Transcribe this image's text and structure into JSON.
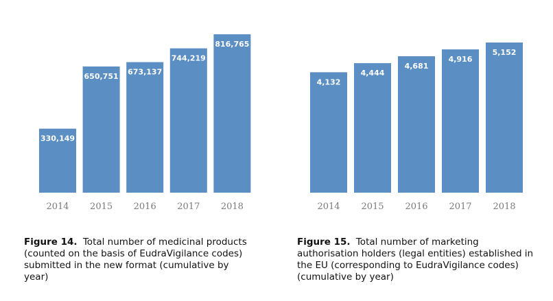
{
  "colors": {
    "bar": "#5b8ec2",
    "bar_label": "#ffffff",
    "tick": "#7a7a7a"
  },
  "figures": [
    {
      "figure_label": "Figure 14.",
      "caption": "Total number of medicinal products (counted on the basis of EudraVigilance codes) submitted in the new format (cumulative by year)"
    },
    {
      "figure_label": "Figure 15.",
      "caption": "Total number of marketing authorisation holders (legal entities) established in the EU (corresponding to EudraVigilance codes) (cumulative by year)"
    }
  ],
  "chart_data": [
    {
      "type": "bar",
      "title": "",
      "xlabel": "",
      "ylabel": "",
      "categories": [
        "2014",
        "2015",
        "2016",
        "2017",
        "2018"
      ],
      "values": [
        330149,
        650751,
        673137,
        744219,
        816765
      ],
      "data_labels": [
        "330,149",
        "650,751",
        "673,137",
        "744,219",
        "816,765"
      ],
      "ylim": [
        0,
        816765
      ],
      "grid": false,
      "legend": "none"
    },
    {
      "type": "bar",
      "title": "",
      "xlabel": "",
      "ylabel": "",
      "categories": [
        "2014",
        "2015",
        "2016",
        "2017",
        "2018"
      ],
      "values": [
        4132,
        4444,
        4681,
        4916,
        5152
      ],
      "data_labels": [
        "4,132",
        "4,444",
        "4,681",
        "4,916",
        "5,152"
      ],
      "ylim": [
        0,
        5152
      ],
      "grid": false,
      "legend": "none"
    }
  ]
}
